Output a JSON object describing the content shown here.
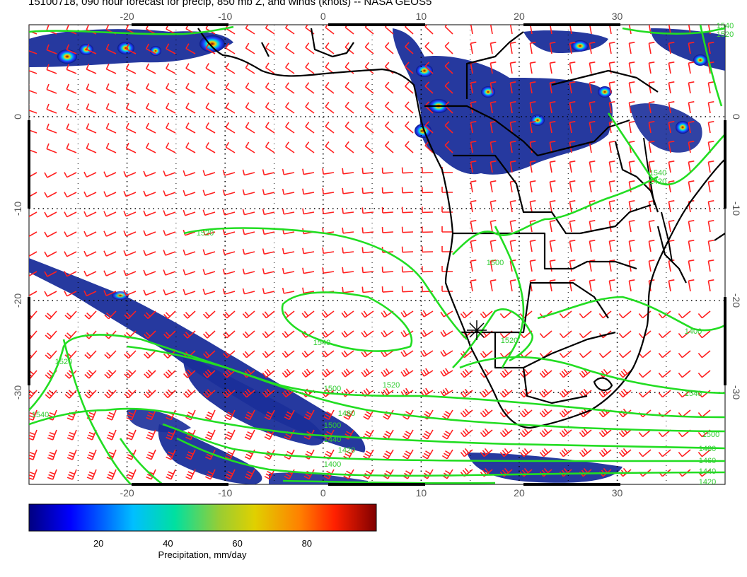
{
  "title": "15100718, 090 hour forecast for precip, 850 mb Z, and winds (knots) -- NASA GEOS5",
  "map": {
    "lon_range": [
      -30,
      41
    ],
    "lat_range": [
      -40,
      10
    ],
    "x_ticks": [
      "-20",
      "-10",
      "0",
      "10",
      "20",
      "30"
    ],
    "y_ticks": [
      "0",
      "-10",
      "-20",
      "-30"
    ],
    "projection": "equirectangular"
  },
  "colorbar": {
    "label": "Precipitation, mm/day",
    "ticks": [
      "20",
      "40",
      "60",
      "80"
    ],
    "range": [
      0,
      100
    ],
    "colors": [
      "#000080",
      "#0000ff",
      "#00bfff",
      "#00e0a0",
      "#9acd32",
      "#e0d000",
      "#ff8000",
      "#ff2000",
      "#800000"
    ]
  },
  "contour_labels": [
    "1520",
    "1500",
    "1540",
    "1500",
    "1520",
    "1520",
    "1540",
    "1540",
    "1500",
    "1480",
    "1460",
    "1440",
    "1420",
    "1400",
    "1500",
    "1480",
    "1440",
    "1420",
    "1400",
    "1520",
    "1540",
    "1420",
    "1540",
    "1520"
  ],
  "colors": {
    "wind": "#ff2020",
    "contour": "#22dd22",
    "coast": "#000000"
  }
}
